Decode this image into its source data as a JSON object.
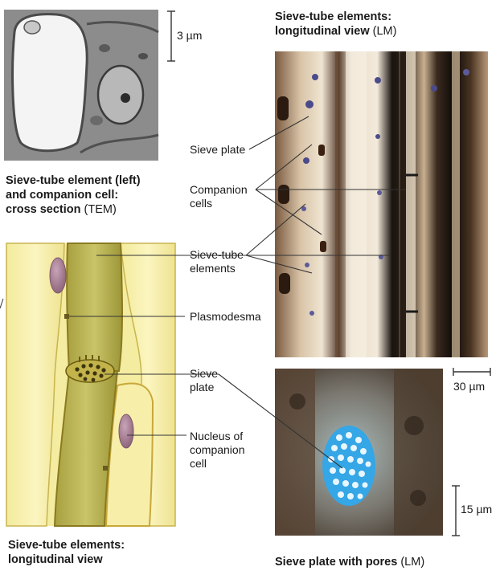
{
  "captions": {
    "tem_line1": "Sieve-tube element (left)",
    "tem_line2": "and companion cell:",
    "tem_line3_bold": "cross section",
    "tem_line3_method": " (TEM)",
    "lm_line1": "Sieve-tube elements:",
    "lm_line2_bold": "longitudinal view",
    "lm_line2_method": " (LM)",
    "drawing_line1": "Sieve-tube elements:",
    "drawing_line2": "longitudinal view",
    "pores_bold": "Sieve plate with pores",
    "pores_method": " (LM)"
  },
  "labels": {
    "sieve_plate_top": "Sieve plate",
    "companion_cells_1": "Companion",
    "companion_cells_2": "cells",
    "sieve_tube_1": "Sieve-tube",
    "sieve_tube_2": "elements",
    "plasmodesma": "Plasmodesma",
    "sieve_plate_1": "Sieve",
    "sieve_plate_2": "plate",
    "nucleus_1": "Nucleus of",
    "nucleus_2": "companion",
    "nucleus_3": "cell"
  },
  "scale_bars": {
    "tem": "3 µm",
    "lm_long": "30 µm",
    "lm_pores": "15 µm"
  }
}
